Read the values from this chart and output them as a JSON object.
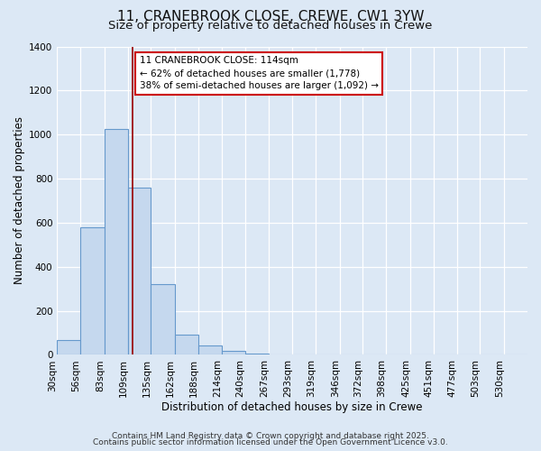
{
  "title": "11, CRANEBROOK CLOSE, CREWE, CW1 3YW",
  "subtitle": "Size of property relative to detached houses in Crewe",
  "xlabel": "Distribution of detached houses by size in Crewe",
  "ylabel": "Number of detached properties",
  "bar_edges": [
    30,
    56,
    83,
    109,
    135,
    162,
    188,
    214,
    240,
    267,
    293,
    319,
    346,
    372,
    398,
    425,
    451,
    477,
    503,
    530,
    556
  ],
  "bar_heights": [
    65,
    580,
    1025,
    760,
    320,
    90,
    42,
    18,
    5,
    2,
    0,
    0,
    0,
    0,
    0,
    0,
    0,
    0,
    0,
    0
  ],
  "bar_color": "#c5d8ee",
  "bar_edge_color": "#6699cc",
  "vline_x": 114,
  "vline_color": "#990000",
  "annotation_title": "11 CRANEBROOK CLOSE: 114sqm",
  "annotation_line1": "← 62% of detached houses are smaller (1,778)",
  "annotation_line2": "38% of semi-detached houses are larger (1,092) →",
  "annotation_box_facecolor": "#ffffff",
  "annotation_box_edgecolor": "#cc0000",
  "ylim": [
    0,
    1400
  ],
  "yticks": [
    0,
    200,
    400,
    600,
    800,
    1000,
    1200,
    1400
  ],
  "fig_bg_color": "#dce8f5",
  "plot_bg_color": "#dce8f5",
  "grid_color": "#ffffff",
  "footer1": "Contains HM Land Registry data © Crown copyright and database right 2025.",
  "footer2": "Contains public sector information licensed under the Open Government Licence v3.0.",
  "title_fontsize": 11,
  "subtitle_fontsize": 9.5,
  "axis_label_fontsize": 8.5,
  "tick_fontsize": 7.5,
  "annotation_fontsize": 7.5,
  "footer_fontsize": 6.5
}
